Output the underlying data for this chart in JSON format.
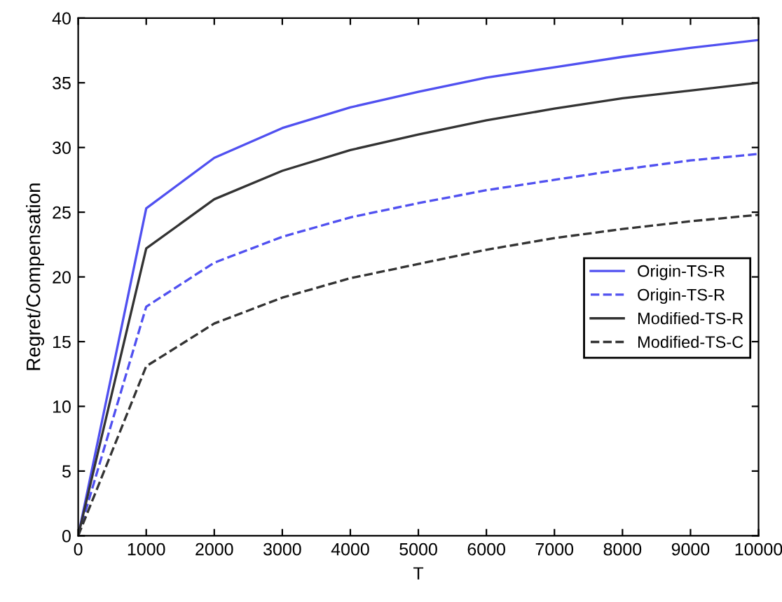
{
  "chart_data": {
    "type": "line",
    "xlabel": "T",
    "ylabel": "Regret/Compensation",
    "x": [
      0,
      1000,
      2000,
      3000,
      4000,
      5000,
      6000,
      7000,
      8000,
      9000,
      10000
    ],
    "series": [
      {
        "name": "Origin-TS-R",
        "color": "#5050f0",
        "line_style": "solid",
        "values": [
          0,
          25.3,
          29.2,
          31.5,
          33.1,
          34.3,
          35.4,
          36.2,
          37.0,
          37.7,
          38.3
        ]
      },
      {
        "name": "Origin-TS-R",
        "color": "#5050f0",
        "line_style": "dashed",
        "values": [
          0,
          17.7,
          21.1,
          23.1,
          24.6,
          25.7,
          26.7,
          27.5,
          28.3,
          29.0,
          29.5
        ]
      },
      {
        "name": "Modified-TS-R",
        "color": "#333333",
        "line_style": "solid",
        "values": [
          0,
          22.2,
          26.0,
          28.2,
          29.8,
          31.0,
          32.1,
          33.0,
          33.8,
          34.4,
          35.0
        ]
      },
      {
        "name": "Modified-TS-C",
        "color": "#333333",
        "line_style": "dashed",
        "values": [
          0,
          13.1,
          16.4,
          18.4,
          19.9,
          21.0,
          22.1,
          23.0,
          23.7,
          24.3,
          24.8
        ]
      }
    ],
    "xlim": [
      0,
      10000
    ],
    "xticks": [
      0,
      1000,
      2000,
      3000,
      4000,
      5000,
      6000,
      7000,
      8000,
      9000,
      10000
    ],
    "ylim": [
      0,
      40
    ],
    "yticks": [
      0,
      5,
      10,
      15,
      20,
      25,
      30,
      35,
      40
    ],
    "grid": false,
    "legend": "right"
  }
}
